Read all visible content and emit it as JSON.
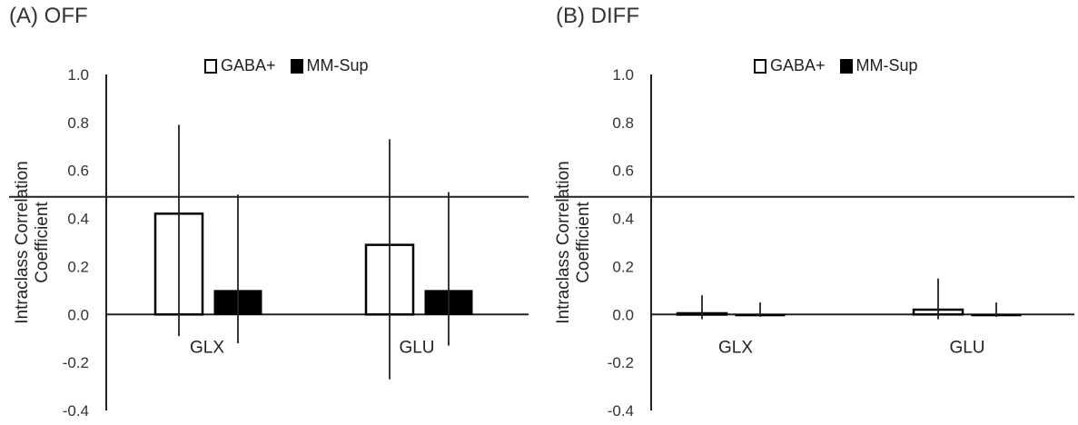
{
  "chart_data": [
    {
      "panel_title": "(A) OFF",
      "type": "bar",
      "categories": [
        "GLX",
        "GLU"
      ],
      "ylabel": "Intraclass Correlation Coefficient",
      "ylabel_lines": [
        "Intraclass Correlation",
        "Coefficient"
      ],
      "ylim": [
        -0.4,
        1.0
      ],
      "yticks": [
        1.0,
        0.8,
        0.6,
        0.4,
        0.2,
        0.0,
        -0.2,
        -0.4
      ],
      "ytick_labels": [
        "1.0",
        "0.8",
        "0.6",
        "0.4",
        "0.2",
        "0.0",
        "-0.2",
        "-0.4"
      ],
      "reference_line": 0.49,
      "legend": [
        "GABA+",
        "MM-Sup"
      ],
      "series": [
        {
          "name": "GABA+",
          "style": "hollow",
          "values": [
            0.42,
            0.29
          ],
          "err_low": [
            -0.09,
            -0.27
          ],
          "err_high": [
            0.79,
            0.73
          ]
        },
        {
          "name": "MM-Sup",
          "style": "filled",
          "values": [
            0.1,
            0.1
          ],
          "err_low": [
            -0.12,
            -0.13
          ],
          "err_high": [
            0.5,
            0.51
          ]
        }
      ]
    },
    {
      "panel_title": "(B) DIFF",
      "type": "bar",
      "categories": [
        "GLX",
        "GLU"
      ],
      "ylabel": "Intraclass Correlation Coefficient",
      "ylabel_lines": [
        "Intraclass Correlation",
        "Coefficient"
      ],
      "ylim": [
        -0.4,
        1.0
      ],
      "yticks": [
        1.0,
        0.8,
        0.6,
        0.4,
        0.2,
        0.0,
        -0.2,
        -0.4
      ],
      "ytick_labels": [
        "1.0",
        "0.8",
        "0.6",
        "0.4",
        "0.2",
        "0.0",
        "-0.2",
        "-0.4"
      ],
      "reference_line": 0.49,
      "legend": [
        "GABA+",
        "MM-Sup"
      ],
      "series": [
        {
          "name": "GABA+",
          "style": "hollow",
          "values": [
            0.005,
            0.02
          ],
          "err_low": [
            -0.02,
            -0.02
          ],
          "err_high": [
            0.08,
            0.15
          ]
        },
        {
          "name": "MM-Sup",
          "style": "filled",
          "values": [
            0.0,
            0.0
          ],
          "err_low": [
            -0.01,
            -0.01
          ],
          "err_high": [
            0.05,
            0.05
          ]
        }
      ]
    }
  ]
}
